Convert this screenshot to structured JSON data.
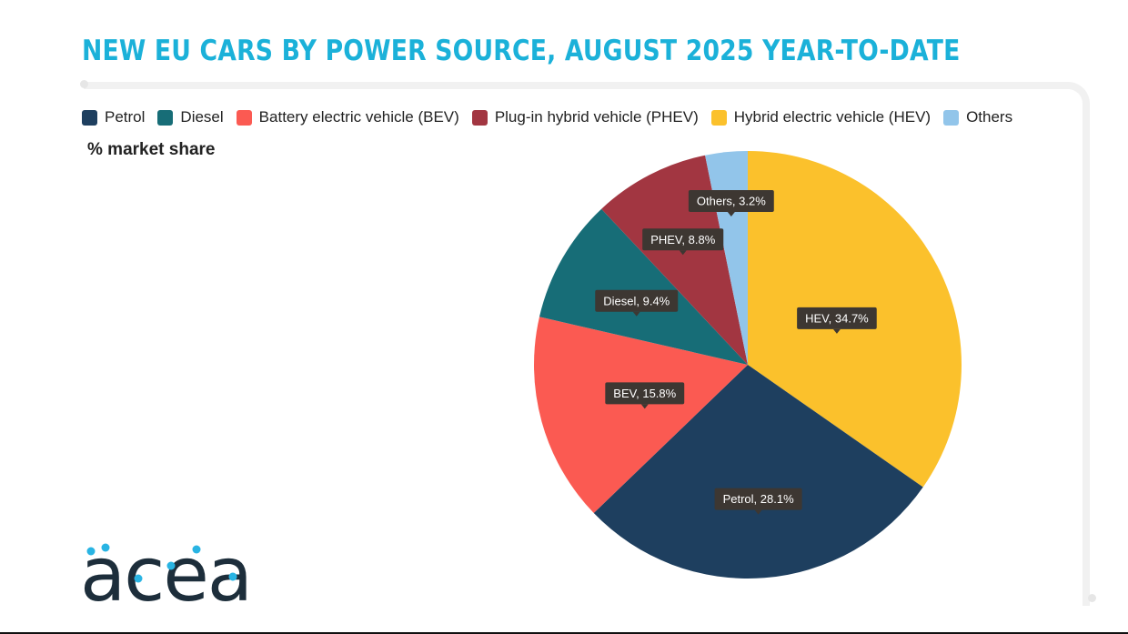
{
  "title": "NEW EU CARS BY POWER SOURCE, AUGUST 2025 YEAR-TO-DATE",
  "subtitle": "% market share",
  "logo_text": "acea",
  "colors": {
    "title": "#1bb1d9",
    "tooltip_bg": "#3d3732",
    "logo_text": "#1d2e3b",
    "logo_accent": "#29b4e3"
  },
  "chart_data": {
    "type": "pie",
    "title": "NEW EU CARS BY POWER SOURCE, AUGUST 2025 YEAR-TO-DATE",
    "subtitle": "% market share",
    "legend_position": "top-left",
    "start_angle": "12 o'clock, clockwise",
    "slices": [
      {
        "name": "Hybrid electric vehicle (HEV)",
        "short": "HEV",
        "value": 34.7,
        "label": "HEV, 34.7%",
        "color": "#fbc12c"
      },
      {
        "name": "Petrol",
        "short": "Petrol",
        "value": 28.1,
        "label": "Petrol, 28.1%",
        "color": "#1e3f5f"
      },
      {
        "name": "Battery electric vehicle (BEV)",
        "short": "BEV",
        "value": 15.8,
        "label": "BEV, 15.8%",
        "color": "#fb5a52"
      },
      {
        "name": "Diesel",
        "short": "Diesel",
        "value": 9.4,
        "label": "Diesel, 9.4%",
        "color": "#176d77"
      },
      {
        "name": "Plug-in hybrid vehicle (PHEV)",
        "short": "PHEV",
        "value": 8.8,
        "label": "PHEV, 8.8%",
        "color": "#a23641"
      },
      {
        "name": "Others",
        "short": "Others",
        "value": 3.2,
        "label": "Others, 3.2%",
        "color": "#92c5ea"
      }
    ],
    "legend": [
      {
        "name": "Petrol",
        "color": "#1e3f5f"
      },
      {
        "name": "Diesel",
        "color": "#176d77"
      },
      {
        "name": "Battery electric vehicle (BEV)",
        "color": "#fb5a52"
      },
      {
        "name": "Plug-in hybrid vehicle (PHEV)",
        "color": "#a23641"
      },
      {
        "name": "Hybrid electric vehicle (HEV)",
        "color": "#fbc12c"
      },
      {
        "name": "Others",
        "color": "#92c5ea"
      }
    ]
  }
}
